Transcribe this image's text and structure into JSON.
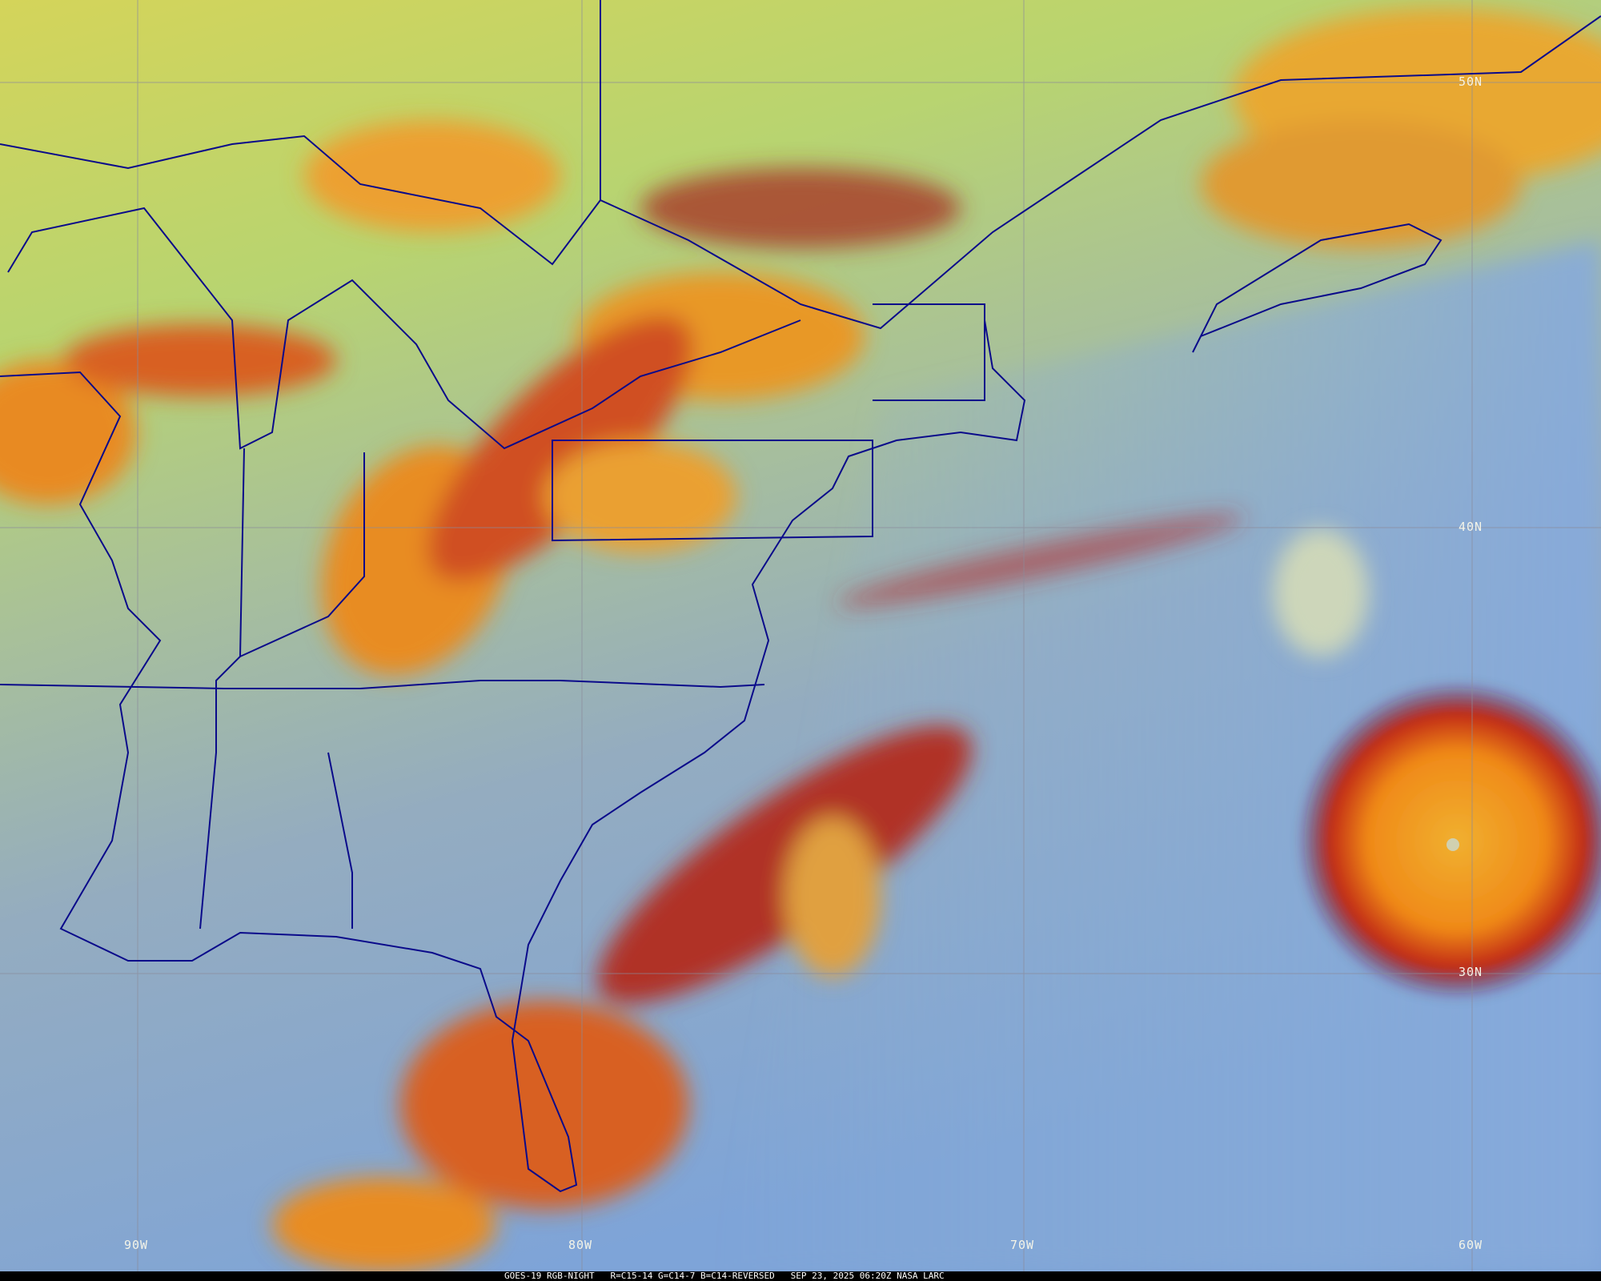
{
  "image": {
    "satellite": "GOES-19",
    "product": "RGB-NIGHT",
    "caption": "GOES-19 RGB-NIGHT   R=C15-14 G=C14-7 B=C14-REVERSED   SEP 23, 2025 06:20Z NASA LARC"
  },
  "grid_labels": {
    "lat": [
      "50N",
      "40N",
      "30N"
    ],
    "lon": [
      "90W",
      "80W",
      "70W",
      "60W"
    ]
  },
  "colors": {
    "boundaries": "#0a0a8a",
    "grid": "#8a8a9a",
    "high_cloud": "#f0a020",
    "cold_cloud_edge": "#a01818",
    "ocean_clear": "#7fa8d8",
    "land_clear": "#a8c890",
    "low_cloud": "#d8d860"
  }
}
